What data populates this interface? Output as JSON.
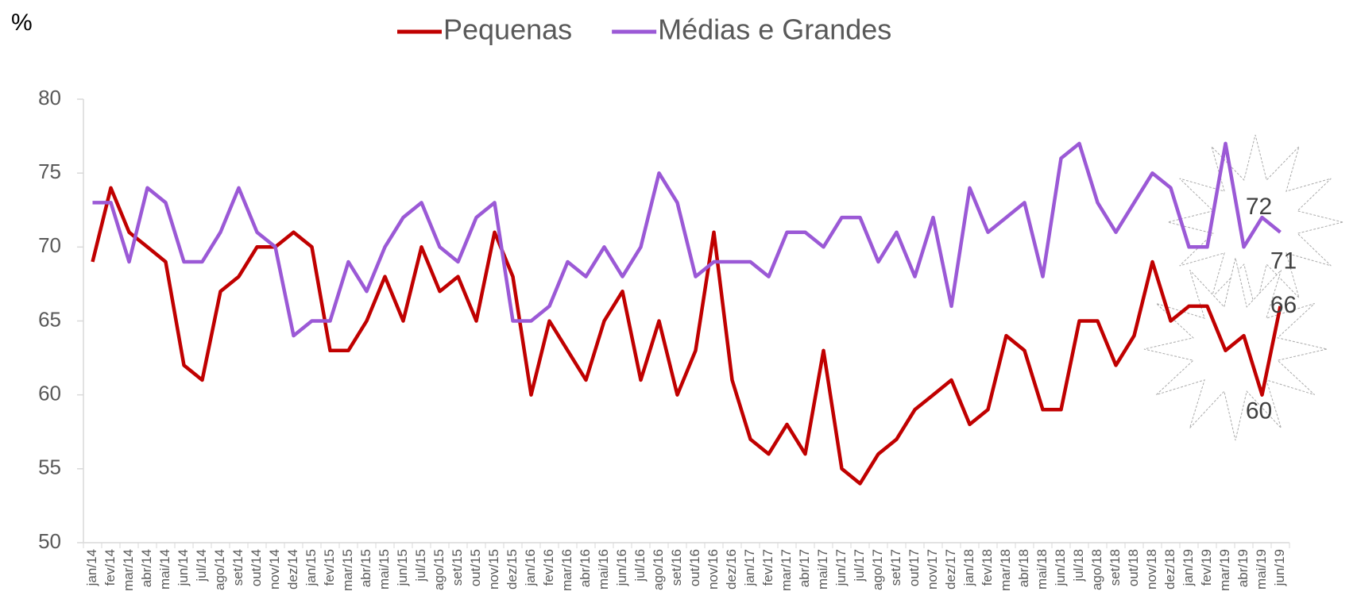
{
  "chart_data": {
    "type": "line",
    "y_label": "%",
    "categories": [
      "jan/14",
      "fev/14",
      "mar/14",
      "abr/14",
      "mai/14",
      "jun/14",
      "jul/14",
      "ago/14",
      "set/14",
      "out/14",
      "nov/14",
      "dez/14",
      "jan/15",
      "fev/15",
      "mar/15",
      "abr/15",
      "mai/15",
      "jun/15",
      "jul/15",
      "ago/15",
      "set/15",
      "out/15",
      "nov/15",
      "dez/15",
      "jan/16",
      "fev/16",
      "mar/16",
      "abr/16",
      "mai/16",
      "jun/16",
      "jul/16",
      "ago/16",
      "set/16",
      "out/16",
      "nov/16",
      "dez/16",
      "jan/17",
      "fev/17",
      "mar/17",
      "abr/17",
      "mai/17",
      "jun/17",
      "jul/17",
      "ago/17",
      "set/17",
      "out/17",
      "nov/17",
      "dez/17",
      "jan/18",
      "fev/18",
      "mar/18",
      "abr/18",
      "mai/18",
      "jun/18",
      "jul/18",
      "ago/18",
      "set/18",
      "out/18",
      "nov/18",
      "dez/18",
      "jan/19",
      "fev/19",
      "mar/19",
      "abr/19",
      "mai/19",
      "jun/19"
    ],
    "series": [
      {
        "name": "Pequenas",
        "color": "#c00000",
        "values": [
          69,
          74,
          71,
          70,
          69,
          62,
          61,
          67,
          68,
          70,
          70,
          71,
          70,
          63,
          63,
          65,
          68,
          65,
          70,
          67,
          68,
          65,
          71,
          68,
          60,
          65,
          63,
          61,
          65,
          67,
          61,
          65,
          60,
          63,
          71,
          61,
          57,
          56,
          58,
          56,
          63,
          55,
          54,
          56,
          57,
          59,
          60,
          61,
          58,
          59,
          64,
          63,
          59,
          59,
          65,
          65,
          62,
          64,
          69,
          65,
          66,
          66,
          63,
          64,
          60,
          66
        ]
      },
      {
        "name": "Médias e Grandes",
        "color": "#9b59d6",
        "values": [
          73,
          73,
          69,
          74,
          73,
          69,
          69,
          71,
          74,
          71,
          70,
          64,
          65,
          65,
          69,
          67,
          70,
          72,
          73,
          70,
          69,
          72,
          73,
          65,
          65,
          66,
          69,
          68,
          70,
          68,
          70,
          75,
          73,
          68,
          69,
          69,
          69,
          68,
          71,
          71,
          70,
          72,
          72,
          69,
          71,
          68,
          72,
          66,
          74,
          71,
          72,
          73,
          68,
          76,
          77,
          73,
          71,
          73,
          75,
          74,
          70,
          70,
          77,
          70,
          72,
          71
        ]
      }
    ],
    "ylim": [
      50,
      80
    ],
    "yticks": [
      50,
      55,
      60,
      65,
      70,
      75,
      80
    ],
    "grid": false
  }
}
